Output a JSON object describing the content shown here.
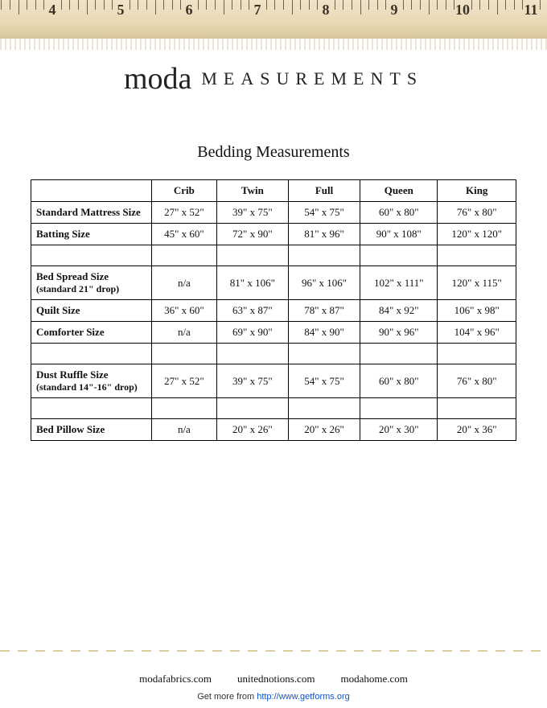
{
  "ruler": {
    "bg_top": "#f0e4c8",
    "bg_mid": "#e8d9b5",
    "bg_bot": "#d8c79a",
    "mark_color": "#3a3228",
    "start": 3,
    "end": 11,
    "pxPerInch": 85
  },
  "brand": {
    "name": "moda",
    "sub": "MEASUREMENTS"
  },
  "title": "Bedding Measurements",
  "table": {
    "columns": [
      "",
      "Crib",
      "Twin",
      "Full",
      "Queen",
      "King"
    ],
    "rows": [
      {
        "label": "Standard Mattress Size",
        "cells": [
          "27\" x 52\"",
          "39\" x 75\"",
          "54\" x 75\"",
          "60\" x 80\"",
          "76\" x 80\""
        ]
      },
      {
        "label": "Batting Size",
        "cells": [
          "45\" x 60\"",
          "72\" x 90\"",
          "81\" x 96\"",
          "90\" x 108\"",
          "120\" x 120\""
        ]
      },
      {
        "spacer": true
      },
      {
        "label": "Bed Spread Size",
        "sub": "(standard 21\" drop)",
        "cells": [
          "n/a",
          "81\" x 106\"",
          "96\" x 106\"",
          "102\" x 111\"",
          "120\" x 115\""
        ]
      },
      {
        "label": "Quilt Size",
        "cells": [
          "36\" x 60\"",
          "63\" x 87\"",
          "78\" x 87\"",
          "84\" x 92\"",
          "106\" x 98\""
        ]
      },
      {
        "label": "Comforter Size",
        "cells": [
          "n/a",
          "69\" x 90\"",
          "84\" x 90\"",
          "90\" x 96\"",
          "104\" x 96\""
        ]
      },
      {
        "spacer": true
      },
      {
        "label": "Dust Ruffle Size",
        "sub": "(standard 14\"-16\" drop)",
        "cells": [
          "27\" x 52\"",
          "39\" x 75\"",
          "54\" x 75\"",
          "60\" x 80\"",
          "76\" x 80\""
        ]
      },
      {
        "spacer": true
      },
      {
        "label": "Bed Pillow Size",
        "cells": [
          "n/a",
          "20\" x 26\"",
          "20\" x 26\"",
          "20\" x 30\"",
          "20\" x 36\""
        ]
      }
    ],
    "border_color": "#000000",
    "font_size": 13
  },
  "footer": {
    "sites": [
      "modafabrics.com",
      "unitednotions.com",
      "modahome.com"
    ]
  },
  "source": {
    "prefix": "Get more from ",
    "url": "http://www.getforms.org"
  }
}
